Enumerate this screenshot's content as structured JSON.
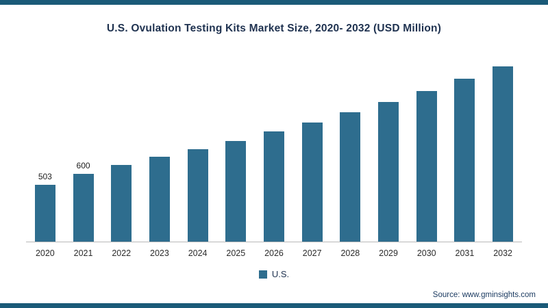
{
  "frame": {
    "accent_color": "#1a5a78"
  },
  "legend": {
    "label": "U.S.",
    "swatch_color": "#2e6d8e"
  },
  "source": "Source: www.gminsights.com",
  "chart_data": {
    "type": "bar",
    "title": "U.S. Ovulation Testing Kits Market Size, 2020- 2032 (USD Million)",
    "categories": [
      "2020",
      "2021",
      "2022",
      "2023",
      "2024",
      "2025",
      "2026",
      "2027",
      "2028",
      "2029",
      "2030",
      "2031",
      "2032"
    ],
    "values": [
      503,
      600,
      680,
      755,
      820,
      890,
      975,
      1055,
      1145,
      1240,
      1335,
      1445,
      1555
    ],
    "data_labels": [
      "503",
      "600",
      "",
      "",
      "",
      "",
      "",
      "",
      "",
      "",
      "",
      "",
      ""
    ],
    "series_name": "U.S.",
    "bar_color": "#2e6d8e",
    "xlabel": "",
    "ylabel": "",
    "ylim": [
      0,
      1700
    ],
    "grid": false,
    "legend_position": "bottom",
    "y_axis_visible": false,
    "x_axis_visible": true
  }
}
